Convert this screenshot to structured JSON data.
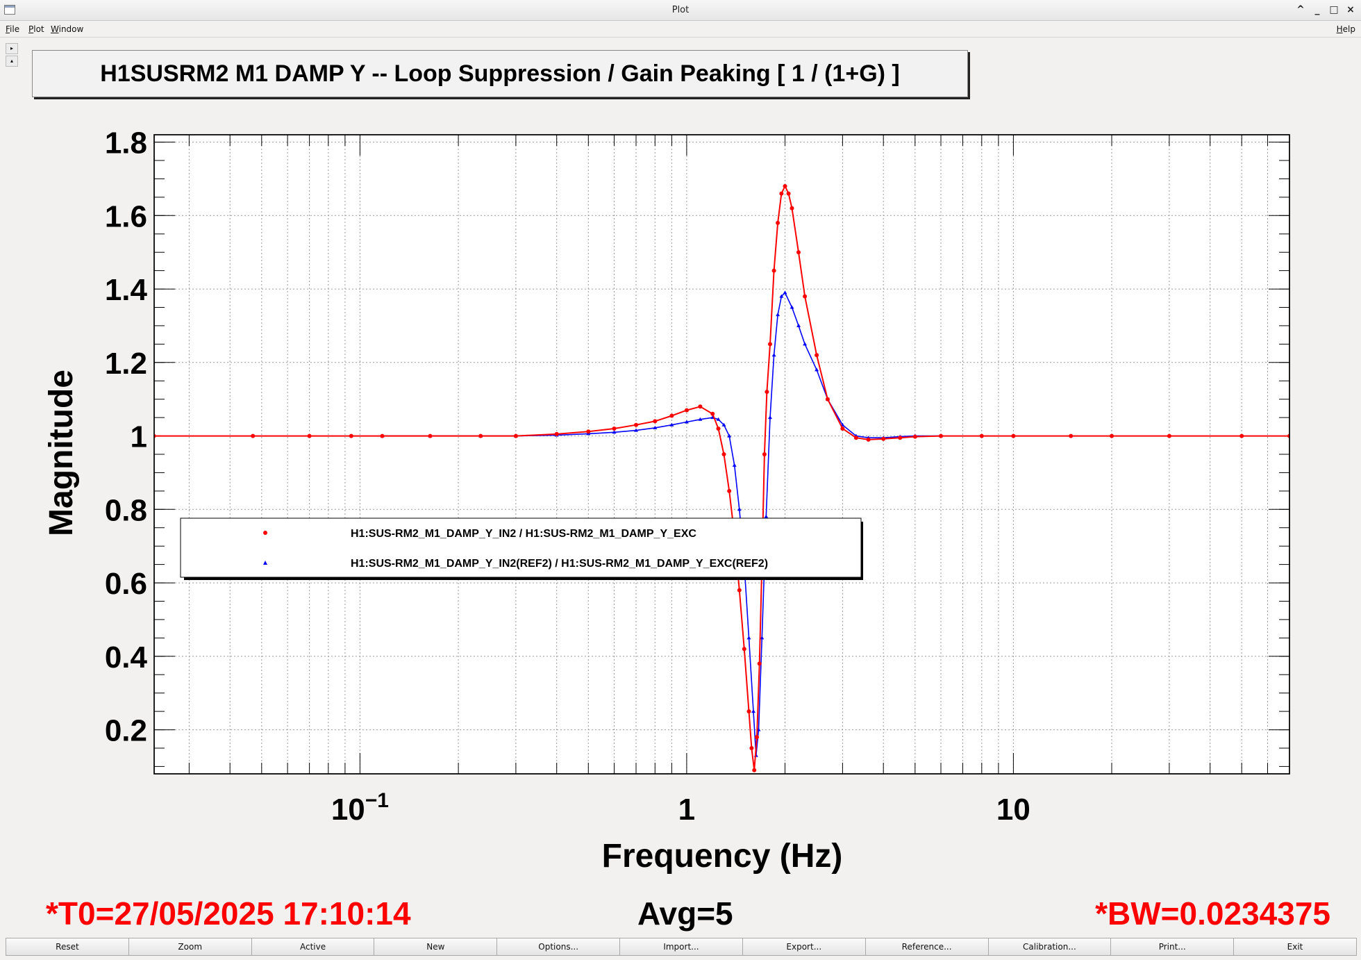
{
  "window": {
    "title": "Plot",
    "controls": [
      "^",
      "_",
      "□",
      "×"
    ]
  },
  "menu": {
    "file": "File",
    "plot": "Plot",
    "window": "Window",
    "help": "Help"
  },
  "plot_title": "H1SUSRM2 M1 DAMP Y -- Loop Suppression / Gain Peaking [ 1 / (1+G) ]",
  "chart_data": {
    "type": "line",
    "title": "H1SUSRM2 M1 DAMP Y -- Loop Suppression / Gain Peaking [ 1 / (1+G) ]",
    "xlabel": "Frequency (Hz)",
    "ylabel": "Magnitude",
    "x_scale": "log",
    "xlim": [
      0.0234375,
      70
    ],
    "ylim": [
      0.08,
      1.82
    ],
    "grid": true,
    "x_tick_labels": [
      {
        "value": 0.1,
        "base": "10",
        "exp": "−1"
      },
      {
        "value": 1,
        "base": "1",
        "exp": ""
      },
      {
        "value": 10,
        "base": "10",
        "exp": ""
      }
    ],
    "y_ticks": [
      0.2,
      0.4,
      0.6,
      0.8,
      1,
      1.2,
      1.4,
      1.6,
      1.8
    ],
    "y_tick_labels": [
      "0.2",
      "0.4",
      "0.6",
      "0.8",
      "1",
      "1.2",
      "1.4",
      "1.6",
      "1.8"
    ],
    "legend_position": "middle-left",
    "series": [
      {
        "name": "H1:SUS-RM2_M1_DAMP_Y_IN2 / H1:SUS-RM2_M1_DAMP_Y_EXC",
        "color": "#ff0000",
        "marker": "circle",
        "x": [
          0.0234,
          0.047,
          0.07,
          0.094,
          0.117,
          0.164,
          0.234,
          0.3,
          0.4,
          0.5,
          0.6,
          0.7,
          0.8,
          0.9,
          1.0,
          1.1,
          1.2,
          1.25,
          1.3,
          1.35,
          1.4,
          1.45,
          1.5,
          1.55,
          1.58,
          1.61,
          1.64,
          1.67,
          1.7,
          1.73,
          1.76,
          1.8,
          1.85,
          1.9,
          1.95,
          2.0,
          2.05,
          2.1,
          2.2,
          2.3,
          2.5,
          2.7,
          3.0,
          3.3,
          3.6,
          4.0,
          4.5,
          5.0,
          6.0,
          8.0,
          10,
          15,
          20,
          30,
          50,
          70
        ],
        "y": [
          1.0,
          1.0,
          1.0,
          1.0,
          1.0,
          1.0,
          1.0,
          1.0,
          1.005,
          1.012,
          1.02,
          1.03,
          1.04,
          1.055,
          1.07,
          1.08,
          1.06,
          1.02,
          0.95,
          0.85,
          0.73,
          0.58,
          0.42,
          0.25,
          0.15,
          0.09,
          0.18,
          0.38,
          0.65,
          0.95,
          1.12,
          1.25,
          1.45,
          1.58,
          1.66,
          1.68,
          1.66,
          1.62,
          1.5,
          1.38,
          1.22,
          1.1,
          1.02,
          0.995,
          0.99,
          0.992,
          0.995,
          0.998,
          1.0,
          1.0,
          1.0,
          1.0,
          1.0,
          1.0,
          1.0,
          1.0
        ]
      },
      {
        "name": "H1:SUS-RM2_M1_DAMP_Y_IN2(REF2) / H1:SUS-RM2_M1_DAMP_Y_EXC(REF2)",
        "color": "#0000ff",
        "marker": "triangle",
        "x": [
          0.117,
          0.164,
          0.234,
          0.3,
          0.4,
          0.5,
          0.6,
          0.7,
          0.8,
          0.9,
          1.0,
          1.1,
          1.2,
          1.25,
          1.3,
          1.35,
          1.4,
          1.45,
          1.5,
          1.55,
          1.6,
          1.63,
          1.66,
          1.7,
          1.75,
          1.8,
          1.85,
          1.9,
          1.95,
          2.0,
          2.1,
          2.2,
          2.3,
          2.5,
          2.7,
          3.0,
          3.3,
          3.6,
          4.0,
          4.5,
          5.0,
          6.0
        ],
        "y": [
          1.0,
          1.0,
          1.0,
          1.0,
          1.002,
          1.006,
          1.01,
          1.015,
          1.022,
          1.03,
          1.038,
          1.045,
          1.05,
          1.045,
          1.03,
          1.0,
          0.92,
          0.8,
          0.65,
          0.45,
          0.25,
          0.13,
          0.2,
          0.45,
          0.78,
          1.05,
          1.22,
          1.33,
          1.38,
          1.39,
          1.35,
          1.3,
          1.25,
          1.18,
          1.1,
          1.03,
          1.0,
          0.995,
          0.995,
          0.998,
          1.0,
          1.0
        ]
      }
    ]
  },
  "footer": {
    "t0": "*T0=27/05/2025 17:10:14",
    "avg": "Avg=5",
    "bw": "*BW=0.0234375"
  },
  "buttons": [
    "Reset",
    "Zoom",
    "Active",
    "New",
    "Options...",
    "Import...",
    "Export...",
    "Reference...",
    "Calibration...",
    "Print...",
    "Exit"
  ]
}
